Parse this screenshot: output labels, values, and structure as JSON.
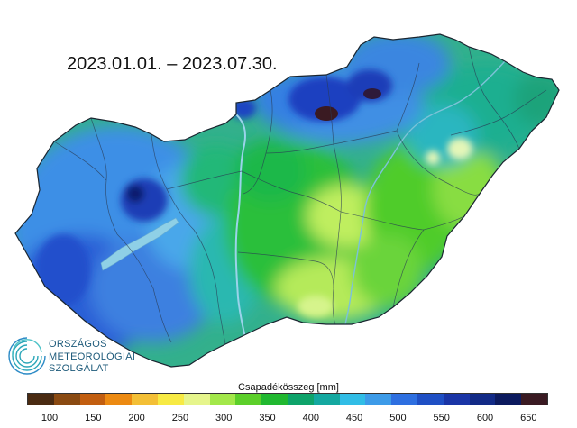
{
  "map": {
    "title": "2023.01.01. – 2023.07.30."
  },
  "logo": {
    "line1": "ORSZÁGOS",
    "line2": "METEOROLÓGIAI",
    "line3": "SZOLGÁLAT"
  },
  "legend": {
    "title": "Csapadékösszeg [mm]",
    "colors": [
      "#4a2b12",
      "#8a4a12",
      "#c25e10",
      "#ec8a12",
      "#f3bf36",
      "#f7ea44",
      "#e6f58c",
      "#a3e84a",
      "#5ccf2a",
      "#21b830",
      "#0ea36a",
      "#14a8a0",
      "#31bde6",
      "#3d9be8",
      "#2e6fe0",
      "#1f4fc4",
      "#1a35a6",
      "#122a86",
      "#0c1a5e",
      "#3a1a22"
    ],
    "ticks": [
      "100",
      "150",
      "200",
      "250",
      "300",
      "350",
      "400",
      "450",
      "500",
      "550",
      "600",
      "650"
    ]
  }
}
